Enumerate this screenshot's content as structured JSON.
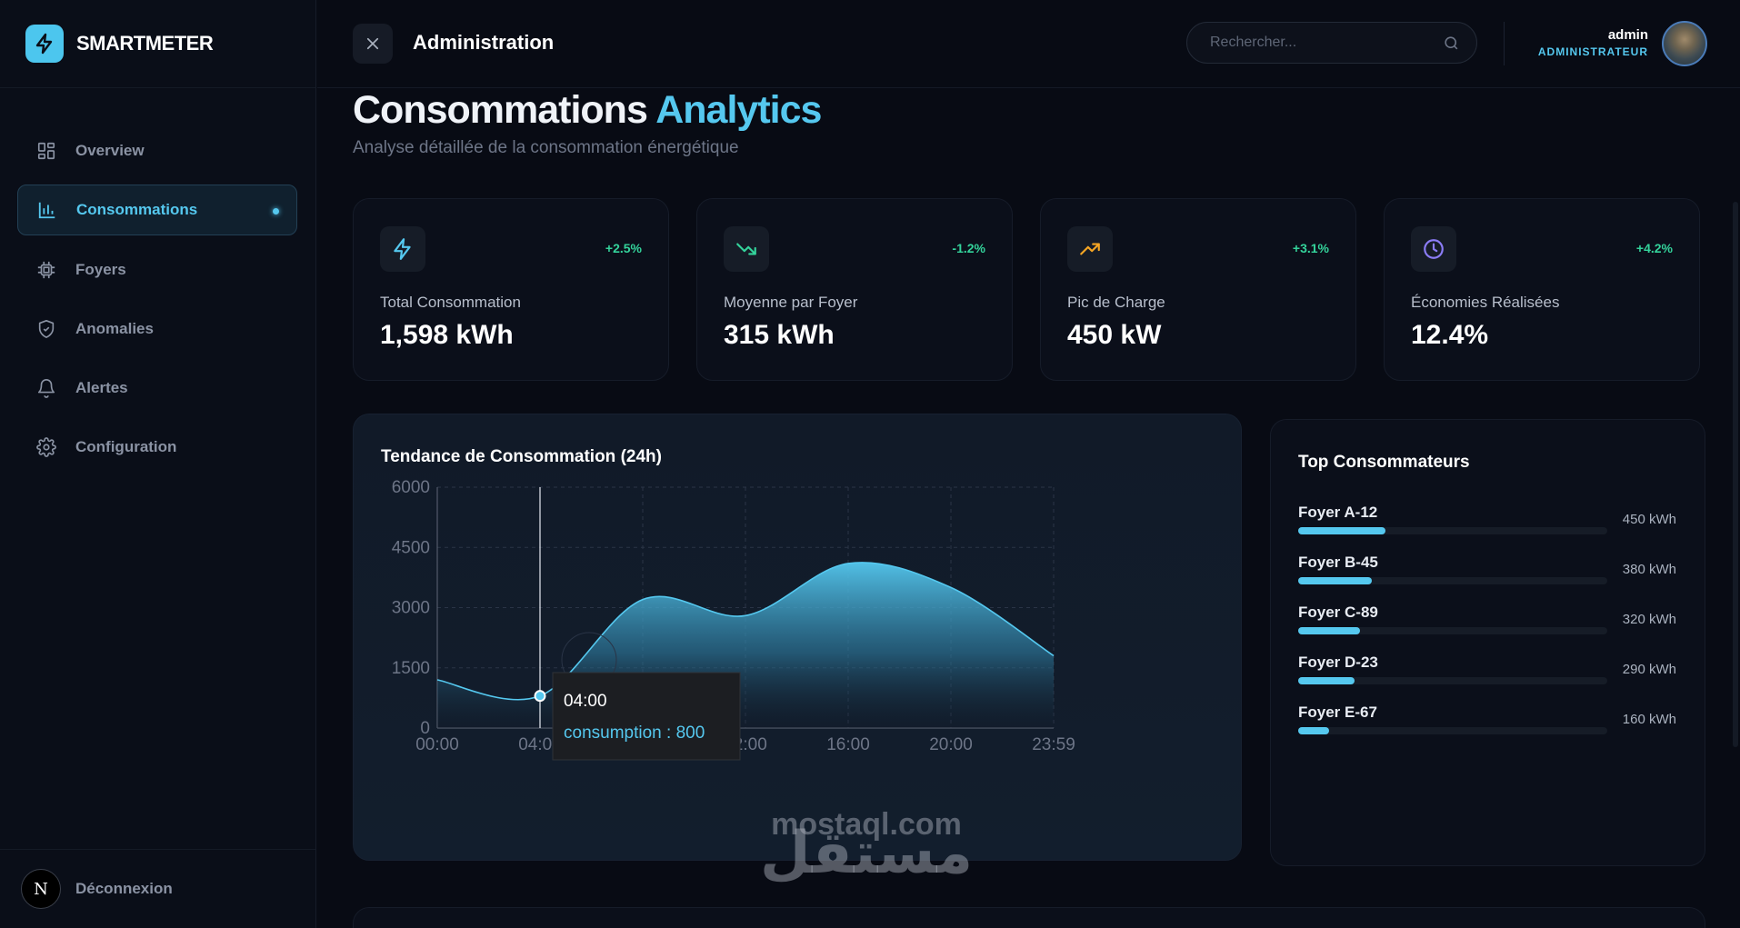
{
  "brand": {
    "name": "SMARTMETER",
    "icon": "bolt-icon",
    "color": "#4cc6ee"
  },
  "sidebar": {
    "items": [
      {
        "label": "Overview",
        "icon": "grid-icon",
        "active": false
      },
      {
        "label": "Consommations",
        "icon": "bar-chart-icon",
        "active": true
      },
      {
        "label": "Foyers",
        "icon": "chip-icon",
        "active": false
      },
      {
        "label": "Anomalies",
        "icon": "shield-icon",
        "active": false
      },
      {
        "label": "Alertes",
        "icon": "bell-icon",
        "active": false
      },
      {
        "label": "Configuration",
        "icon": "gear-icon",
        "active": false
      }
    ],
    "logout": {
      "avatar_letter": "N",
      "label": "Déconnexion"
    }
  },
  "header": {
    "title": "Administration",
    "search_placeholder": "Rechercher...",
    "user": {
      "name": "admin",
      "role": "ADMINISTRATEUR"
    }
  },
  "page": {
    "title_main": "Consommations",
    "title_accent": "Analytics",
    "subtitle": "Analyse détaillée de la consommation énergétique"
  },
  "stats": [
    {
      "label": "Total Consommation",
      "value": "1,598 kWh",
      "change": "+2.5%",
      "icon": "bolt-icon",
      "icon_color": "#55c8ef"
    },
    {
      "label": "Moyenne par Foyer",
      "value": "315 kWh",
      "change": "-1.2%",
      "icon": "trending-down-icon",
      "icon_color": "#34d39b"
    },
    {
      "label": "Pic de Charge",
      "value": "450 kW",
      "change": "+3.1%",
      "icon": "trending-up-icon",
      "icon_color": "#f5a524"
    },
    {
      "label": "Économies Réalisées",
      "value": "12.4%",
      "change": "+4.2%",
      "icon": "clock-icon",
      "icon_color": "#8b7cf6"
    }
  ],
  "chart_data": {
    "type": "area",
    "title": "Tendance de Consommation (24h)",
    "x": [
      "00:00",
      "04:00",
      "08:00",
      "12:00",
      "16:00",
      "20:00",
      "23:59"
    ],
    "series": [
      {
        "name": "consumption",
        "values": [
          1200,
          800,
          3200,
          2800,
          4100,
          3500,
          1800
        ]
      }
    ],
    "yticks": [
      0,
      1500,
      3000,
      4500,
      6000
    ],
    "ylim": [
      0,
      6000
    ],
    "grid": true,
    "color": "#55c8ef",
    "tooltip": {
      "x": "04:00",
      "label": "consumption",
      "value": 800
    }
  },
  "top_consumers": {
    "title": "Top Consommateurs",
    "max": 1600,
    "items": [
      {
        "name": "Foyer A-12",
        "value": 450,
        "display": "450 kWh"
      },
      {
        "name": "Foyer B-45",
        "value": 380,
        "display": "380 kWh"
      },
      {
        "name": "Foyer C-89",
        "value": 320,
        "display": "320 kWh"
      },
      {
        "name": "Foyer D-23",
        "value": 290,
        "display": "290 kWh"
      },
      {
        "name": "Foyer E-67",
        "value": 160,
        "display": "160 kWh"
      }
    ]
  },
  "watermark": {
    "arabic": "مستقل",
    "latin": "mostaql.com"
  }
}
